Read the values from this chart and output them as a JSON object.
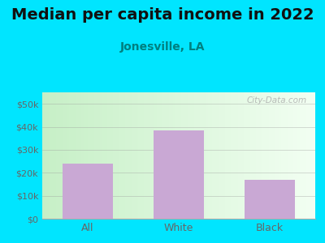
{
  "title": "Median per capita income in 2022",
  "subtitle": "Jonesville, LA",
  "categories": [
    "All",
    "White",
    "Black"
  ],
  "values": [
    24000,
    38500,
    17000
  ],
  "bar_color": "#c9a8d4",
  "title_fontsize": 14,
  "subtitle_fontsize": 10,
  "subtitle_color": "#008080",
  "tick_color": "#666666",
  "background_outer": "#00e5ff",
  "ylim": [
    0,
    55000
  ],
  "yticks": [
    0,
    10000,
    20000,
    30000,
    40000,
    50000
  ],
  "ytick_labels": [
    "$0",
    "$10k",
    "$20k",
    "$30k",
    "$40k",
    "$50k"
  ],
  "watermark": "City-Data.com"
}
